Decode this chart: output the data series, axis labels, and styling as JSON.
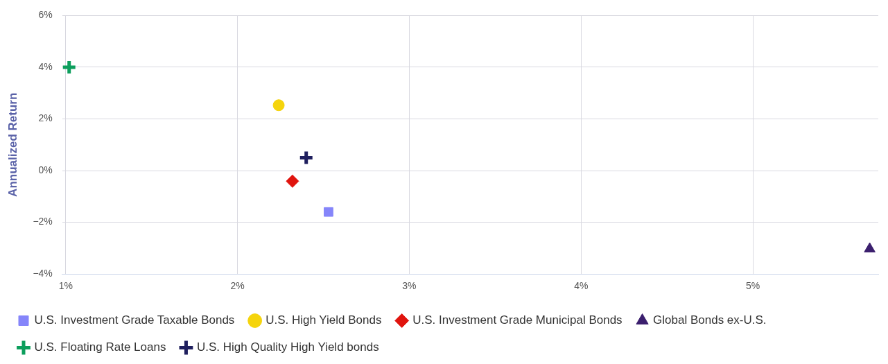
{
  "chart_data": {
    "type": "scatter",
    "ylabel": "Annualized Return",
    "xlim": [
      0.98,
      5.73
    ],
    "xticks": [
      {
        "value": 1,
        "label": "1%"
      },
      {
        "value": 2,
        "label": "2%"
      },
      {
        "value": 3,
        "label": "3%"
      },
      {
        "value": 4,
        "label": "4%"
      },
      {
        "value": 5,
        "label": "5%"
      }
    ],
    "ylim": [
      -4,
      6
    ],
    "yticks": [
      {
        "value": -4,
        "label": "−4%"
      },
      {
        "value": -2,
        "label": "−2%"
      },
      {
        "value": 0,
        "label": "0%"
      },
      {
        "value": 2,
        "label": "2%"
      },
      {
        "value": 4,
        "label": "4%"
      },
      {
        "value": 6,
        "label": "6%"
      }
    ],
    "grid": true,
    "legend": "bottom",
    "series": [
      {
        "name": "U.S. Investment Grade Taxable Bonds",
        "color": "#8585fa",
        "marker": "square",
        "x": [
          2.53
        ],
        "values": [
          -1.6
        ]
      },
      {
        "name": "U.S. High Yield Bonds",
        "color": "#f5d40c",
        "marker": "circle",
        "x": [
          2.24
        ],
        "values": [
          2.53
        ]
      },
      {
        "name": "U.S. Investment Grade Municipal Bonds",
        "color": "#e0140e",
        "marker": "diamond",
        "x": [
          2.32
        ],
        "values": [
          -0.41
        ]
      },
      {
        "name": "Global Bonds ex-U.S.",
        "color": "#3b1f6e",
        "marker": "triangle",
        "x": [
          5.68
        ],
        "values": [
          -3.03
        ]
      },
      {
        "name": "U.S. Floating Rate Loans",
        "color": "#0c9e5c",
        "marker": "cross",
        "x": [
          1.02
        ],
        "values": [
          4.0
        ]
      },
      {
        "name": "U.S. High Quality High Yield bonds",
        "color": "#1f1f5e",
        "marker": "cross",
        "x": [
          2.4
        ],
        "values": [
          0.5
        ]
      }
    ]
  }
}
